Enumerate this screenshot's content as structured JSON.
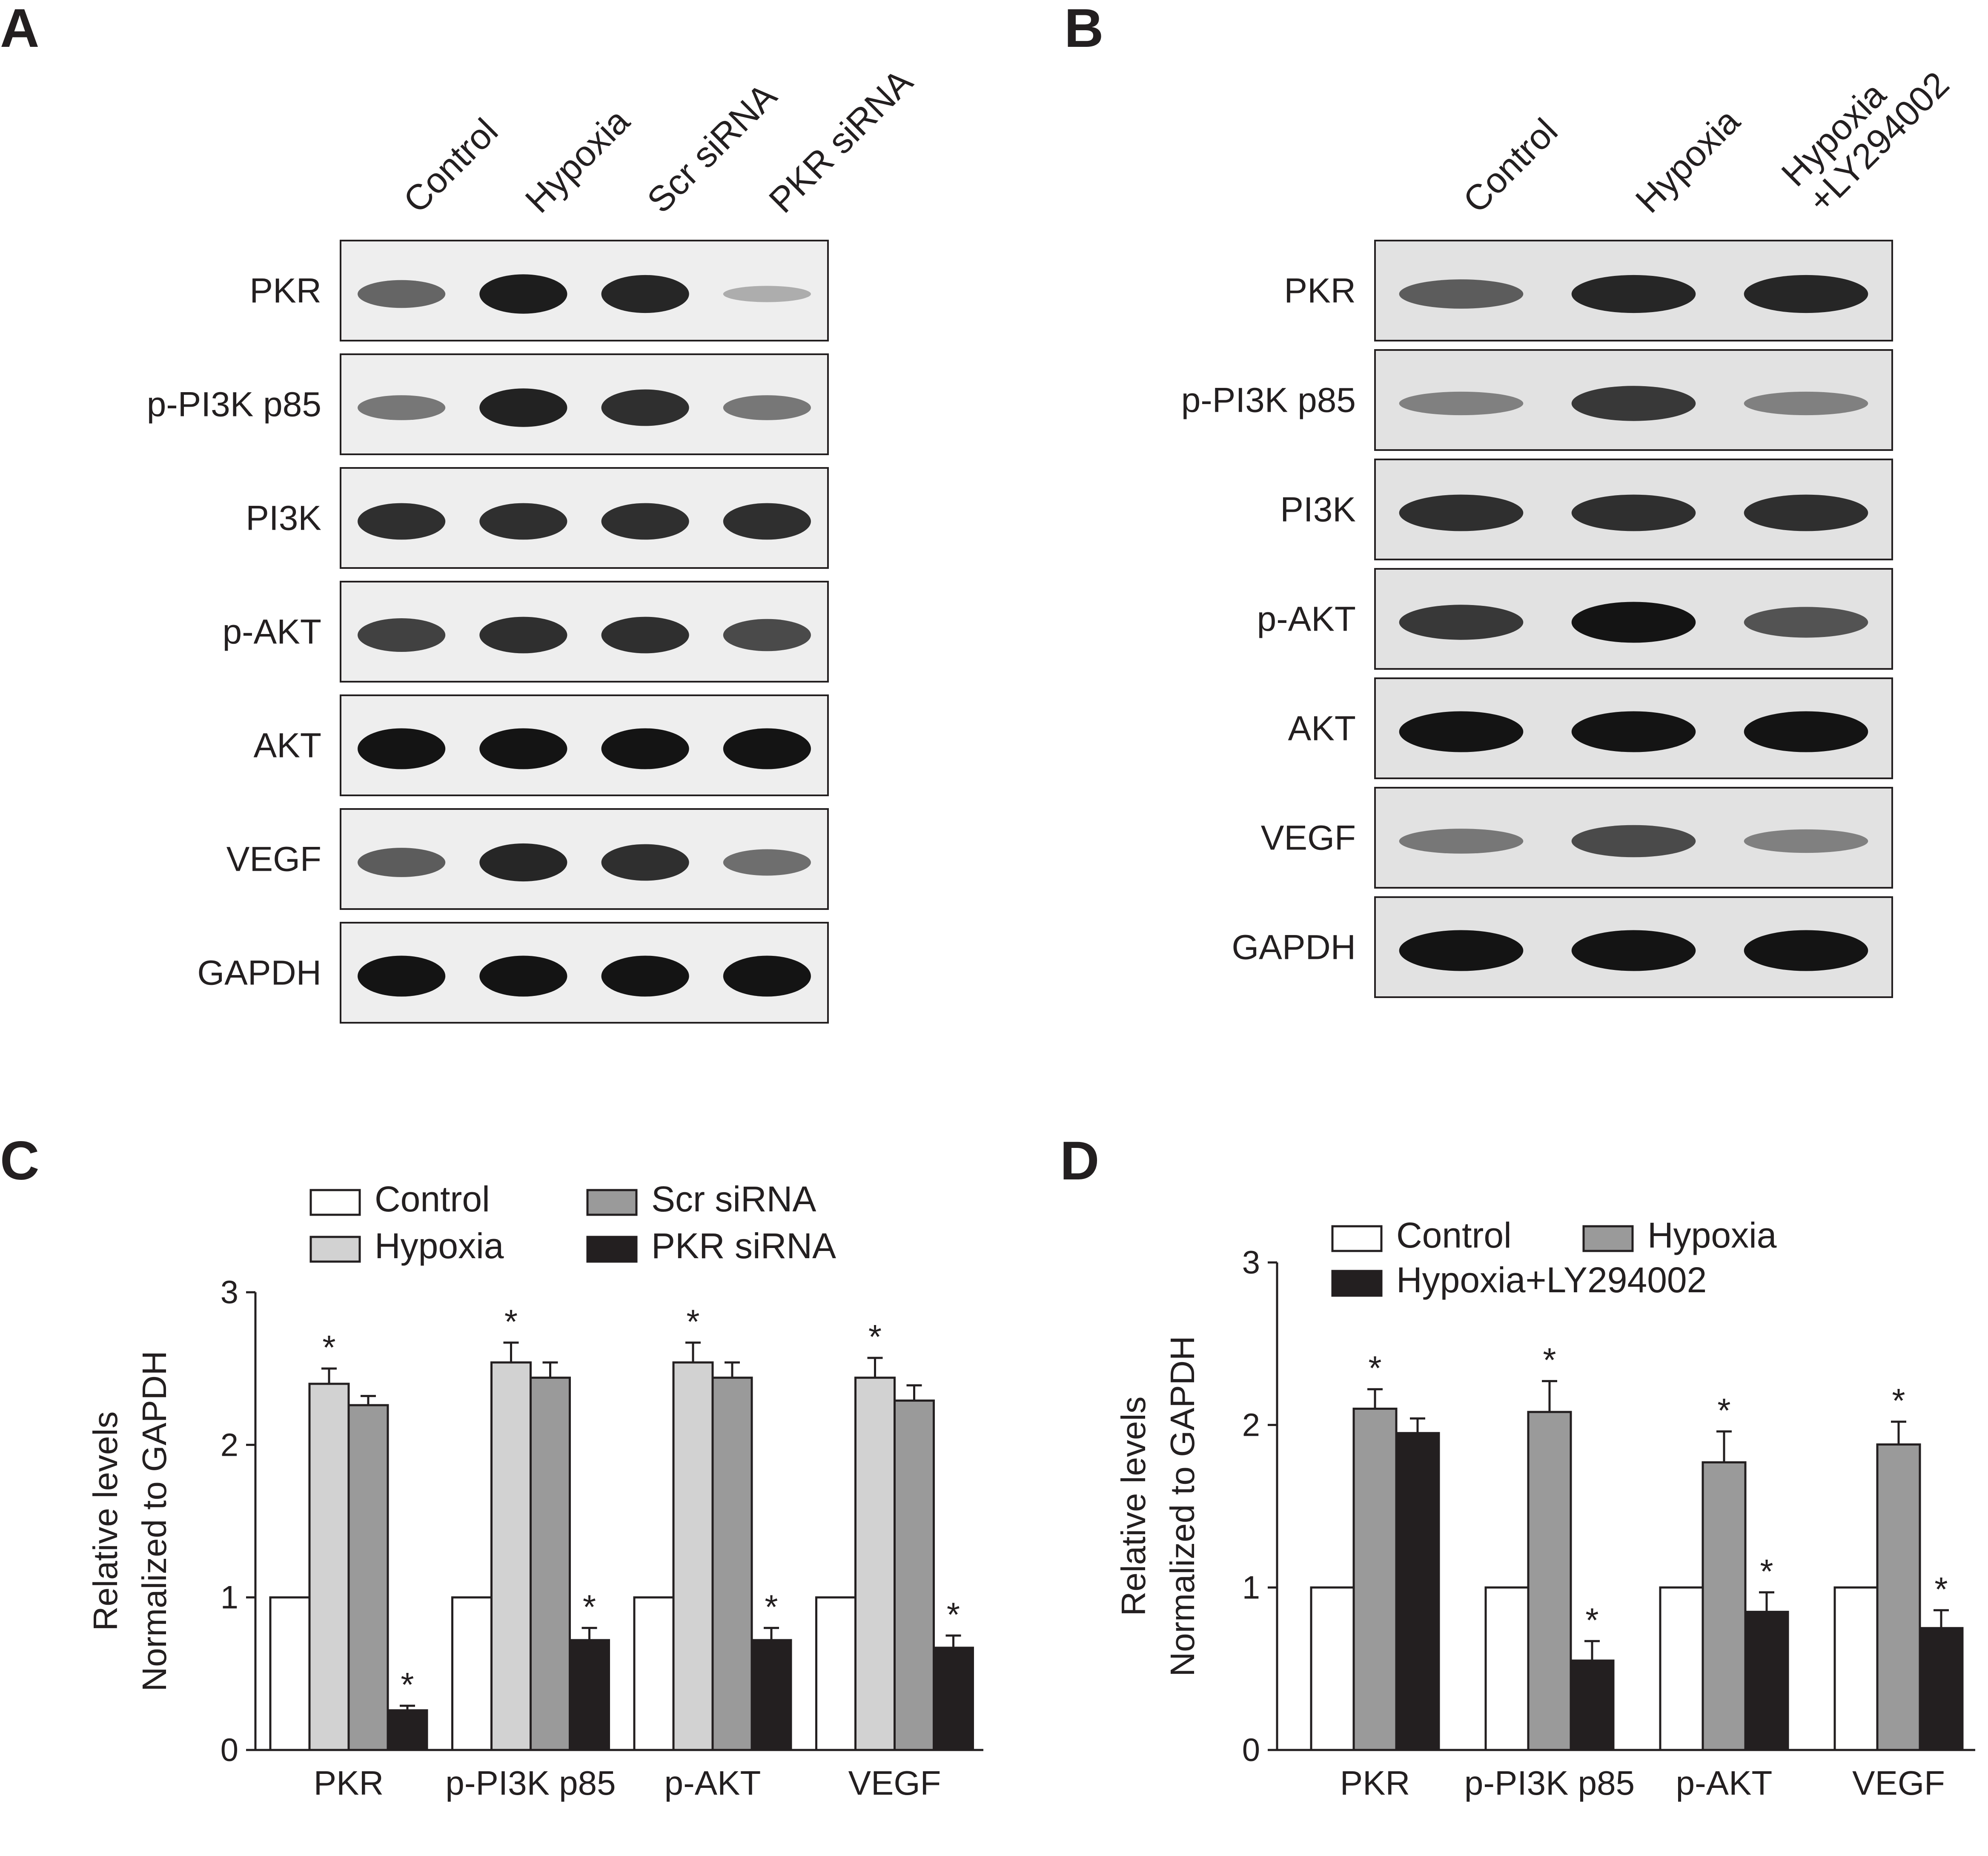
{
  "panels": {
    "A": {
      "letter": "A",
      "lanes": [
        "Control",
        "Hypoxia",
        "Scr siRNA",
        "PKR siRNA"
      ],
      "blots": [
        "PKR",
        "p-PI3K p85",
        "PI3K",
        "p-AKT",
        "AKT",
        "VEGF",
        "GAPDH"
      ],
      "intensity": [
        [
          0.55,
          0.95,
          0.9,
          0.15
        ],
        [
          0.45,
          0.92,
          0.85,
          0.45
        ],
        [
          0.85,
          0.85,
          0.85,
          0.85
        ],
        [
          0.75,
          0.85,
          0.85,
          0.7
        ],
        [
          1,
          1,
          1,
          1
        ],
        [
          0.6,
          0.9,
          0.85,
          0.5
        ],
        [
          1,
          1,
          1,
          1
        ]
      ]
    },
    "B": {
      "letter": "B",
      "lanes": [
        "Control",
        "Hypoxia",
        "Hypoxia\n+LY294002"
      ],
      "blots": [
        "PKR",
        "p-PI3K p85",
        "PI3K",
        "p-AKT",
        "AKT",
        "VEGF",
        "GAPDH"
      ],
      "intensity": [
        [
          0.6,
          0.9,
          0.9
        ],
        [
          0.4,
          0.8,
          0.4
        ],
        [
          0.85,
          0.85,
          0.85
        ],
        [
          0.8,
          1,
          0.65
        ],
        [
          1,
          1,
          1
        ],
        [
          0.45,
          0.7,
          0.4
        ],
        [
          1,
          1,
          1
        ]
      ]
    },
    "C": {
      "letter": "C"
    },
    "D": {
      "letter": "D"
    }
  },
  "chart_data": [
    {
      "panel": "C",
      "type": "bar",
      "ylabel": "Relative levels\nNormalized to GAPDH",
      "ylim": [
        0,
        3
      ],
      "yticks": [
        0,
        1,
        2,
        3
      ],
      "categories": [
        "PKR",
        "p-PI3K p85",
        "p-AKT",
        "VEGF"
      ],
      "legend": "top",
      "series": [
        {
          "name": "Control",
          "color": "#ffffff",
          "values": [
            1.0,
            1.0,
            1.0,
            1.0
          ],
          "errors": [
            0,
            0,
            0,
            0
          ],
          "sig": [
            false,
            false,
            false,
            false
          ]
        },
        {
          "name": "Hypoxia",
          "color": "#d2d2d2",
          "values": [
            2.4,
            2.54,
            2.54,
            2.44
          ],
          "errors": [
            0.1,
            0.13,
            0.13,
            0.13
          ],
          "sig": [
            true,
            true,
            true,
            true
          ]
        },
        {
          "name": "Scr siRNA",
          "color": "#9a9a9a",
          "values": [
            2.26,
            2.44,
            2.44,
            2.29
          ],
          "errors": [
            0.06,
            0.1,
            0.1,
            0.1
          ],
          "sig": [
            false,
            false,
            false,
            false
          ]
        },
        {
          "name": "PKR siRNA",
          "color": "#231f20",
          "values": [
            0.26,
            0.72,
            0.72,
            0.67
          ],
          "errors": [
            0.03,
            0.08,
            0.08,
            0.08
          ],
          "sig": [
            true,
            true,
            true,
            true
          ]
        }
      ]
    },
    {
      "panel": "D",
      "type": "bar",
      "ylabel": "Relative levels\nNormalized to GAPDH",
      "ylim": [
        0,
        3
      ],
      "yticks": [
        0,
        1,
        2,
        3
      ],
      "categories": [
        "PKR",
        "p-PI3K p85",
        "p-AKT",
        "VEGF"
      ],
      "legend": "top",
      "series": [
        {
          "name": "Control",
          "color": "#ffffff",
          "values": [
            1.0,
            1.0,
            1.0,
            1.0
          ],
          "errors": [
            0,
            0,
            0,
            0
          ],
          "sig": [
            false,
            false,
            false,
            false
          ]
        },
        {
          "name": "Hypoxia",
          "color": "#9a9a9a",
          "values": [
            2.1,
            2.08,
            1.77,
            1.88
          ],
          "errors": [
            0.12,
            0.19,
            0.19,
            0.14
          ],
          "sig": [
            true,
            true,
            true,
            true
          ]
        },
        {
          "name": "Hypoxia+LY294002",
          "color": "#231f20",
          "values": [
            1.95,
            0.55,
            0.85,
            0.75
          ],
          "errors": [
            0.09,
            0.12,
            0.12,
            0.11
          ],
          "sig": [
            false,
            true,
            true,
            true
          ]
        }
      ]
    }
  ]
}
